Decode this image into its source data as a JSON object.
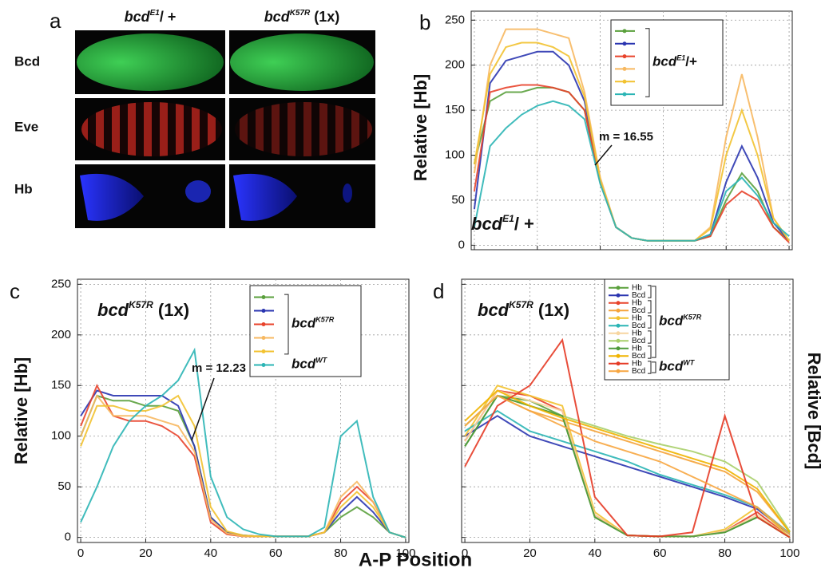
{
  "figure": {
    "x_axis_label": "A-P Position"
  },
  "panel_a": {
    "label": "a",
    "columns": [
      {
        "base": "bcd",
        "sup": "E1",
        "rest": "/ +"
      },
      {
        "base": "bcd",
        "sup": "K57R",
        "rest": " (1x)"
      }
    ],
    "rows": [
      "Bcd",
      "Eve",
      "Hb"
    ]
  },
  "chart_data": [
    {
      "type": "line",
      "panel_label": "b",
      "y_label": "Relative [Hb]",
      "inset_label": {
        "base": "bcd",
        "sup": "E1",
        "rest": "/ +"
      },
      "annotation": "m = 16.55",
      "legend_groups": [
        {
          "base": "bcd",
          "sup": "E1",
          "rest": "/+"
        }
      ],
      "x": [
        0,
        5,
        10,
        15,
        20,
        25,
        30,
        35,
        40,
        45,
        50,
        55,
        60,
        65,
        70,
        75,
        80,
        85,
        90,
        95,
        100
      ],
      "xlim": [
        -1,
        101
      ],
      "ylim": [
        -5,
        260
      ],
      "xticks": [
        0,
        20,
        40,
        60,
        80,
        100
      ],
      "xtick_labels": false,
      "yticks": [
        0,
        50,
        100,
        150,
        200,
        250
      ],
      "ytick_labels": true,
      "grid": true,
      "series": [
        {
          "color": "#5aa03c",
          "values": [
            90,
            160,
            170,
            170,
            175,
            175,
            170,
            150,
            70,
            20,
            8,
            5,
            5,
            5,
            5,
            10,
            50,
            80,
            60,
            20,
            5
          ]
        },
        {
          "color": "#2a35b0",
          "values": [
            40,
            180,
            205,
            210,
            215,
            215,
            200,
            160,
            70,
            20,
            8,
            5,
            5,
            5,
            5,
            12,
            70,
            110,
            75,
            25,
            5
          ]
        },
        {
          "color": "#e8432b",
          "values": [
            60,
            170,
            175,
            178,
            178,
            175,
            170,
            150,
            70,
            20,
            8,
            5,
            5,
            5,
            5,
            10,
            45,
            60,
            50,
            20,
            3
          ]
        },
        {
          "color": "#f7b860",
          "values": [
            80,
            200,
            240,
            240,
            240,
            235,
            230,
            170,
            75,
            20,
            8,
            5,
            5,
            5,
            5,
            20,
            120,
            190,
            120,
            30,
            5
          ]
        },
        {
          "color": "#f2c230",
          "values": [
            90,
            190,
            220,
            225,
            225,
            220,
            210,
            165,
            72,
            20,
            8,
            5,
            5,
            5,
            5,
            18,
            100,
            150,
            100,
            30,
            5
          ]
        },
        {
          "color": "#2bb5b5",
          "values": [
            20,
            110,
            130,
            145,
            155,
            160,
            155,
            140,
            68,
            20,
            8,
            5,
            5,
            5,
            5,
            12,
            60,
            75,
            55,
            25,
            10
          ]
        }
      ]
    },
    {
      "type": "line",
      "panel_label": "c",
      "y_label": "Relative [Hb]",
      "inset_label": {
        "base": "bcd",
        "sup": "K57R",
        "rest": "     (1x)"
      },
      "annotation": "m = 12.23",
      "legend_groups": [
        {
          "base": "bcd",
          "sup": "K57R"
        },
        {
          "base": "bcd",
          "sup": "WT"
        }
      ],
      "x": [
        0,
        5,
        10,
        15,
        20,
        25,
        30,
        35,
        40,
        45,
        50,
        55,
        60,
        65,
        70,
        75,
        80,
        85,
        90,
        95,
        100
      ],
      "xlim": [
        -1,
        101
      ],
      "ylim": [
        -5,
        255
      ],
      "xticks": [
        0,
        20,
        40,
        60,
        80,
        100
      ],
      "xtick_labels": true,
      "yticks": [
        0,
        50,
        100,
        150,
        200,
        250
      ],
      "ytick_labels": true,
      "grid": true,
      "series": [
        {
          "color": "#5aa03c",
          "values": [
            100,
            140,
            135,
            135,
            130,
            130,
            125,
            90,
            20,
            5,
            2,
            1,
            1,
            1,
            1,
            5,
            20,
            30,
            20,
            5,
            0
          ]
        },
        {
          "color": "#2a35b0",
          "values": [
            120,
            145,
            140,
            140,
            140,
            140,
            130,
            90,
            20,
            5,
            2,
            1,
            1,
            1,
            1,
            5,
            25,
            40,
            25,
            5,
            0
          ]
        },
        {
          "color": "#e8432b",
          "values": [
            110,
            150,
            120,
            115,
            115,
            110,
            100,
            80,
            15,
            3,
            1,
            1,
            1,
            1,
            1,
            5,
            35,
            50,
            35,
            5,
            0
          ]
        },
        {
          "color": "#f7b860",
          "values": [
            100,
            140,
            120,
            120,
            120,
            115,
            110,
            85,
            18,
            4,
            1,
            1,
            1,
            1,
            1,
            5,
            40,
            55,
            35,
            5,
            0
          ]
        },
        {
          "color": "#f2c230",
          "values": [
            90,
            130,
            130,
            125,
            125,
            130,
            140,
            110,
            30,
            6,
            2,
            1,
            1,
            1,
            1,
            5,
            30,
            45,
            30,
            5,
            0
          ]
        },
        {
          "color": "#2bb5b5",
          "values": [
            15,
            50,
            90,
            115,
            130,
            140,
            155,
            185,
            60,
            20,
            8,
            3,
            1,
            1,
            1,
            10,
            100,
            115,
            40,
            5,
            0
          ]
        }
      ]
    },
    {
      "type": "line",
      "panel_label": "d",
      "y_label": "Relative [Bcd]",
      "inset_label": {
        "base": "bcd",
        "sup": "K57R",
        "rest": " (1x)"
      },
      "legend_groups": [
        {
          "base": "bcd",
          "sup": "K57R"
        },
        {
          "base": "bcd",
          "sup": "WT"
        }
      ],
      "x": [
        0,
        10,
        20,
        30,
        40,
        50,
        60,
        70,
        80,
        90,
        100
      ],
      "xlim": [
        -1,
        101
      ],
      "ylim": [
        -5,
        255
      ],
      "xticks": [
        0,
        20,
        40,
        60,
        80,
        100
      ],
      "xtick_labels": true,
      "yticks": [
        0,
        50,
        100,
        150,
        200,
        250
      ],
      "ytick_labels": false,
      "grid": true,
      "series": [
        {
          "name": "Hb",
          "color": "#5aa03c",
          "values": [
            90,
            140,
            135,
            120,
            20,
            2,
            1,
            1,
            5,
            20,
            0
          ]
        },
        {
          "name": "Bcd",
          "color": "#2a35b0",
          "values": [
            100,
            120,
            100,
            90,
            80,
            70,
            60,
            50,
            40,
            28,
            3
          ]
        },
        {
          "name": "Hb",
          "color": "#e8432b",
          "values": [
            95,
            145,
            140,
            125,
            22,
            2,
            1,
            1,
            6,
            25,
            0
          ]
        },
        {
          "name": "Bcd",
          "color": "#f5a43a",
          "values": [
            110,
            140,
            125,
            115,
            105,
            95,
            85,
            75,
            65,
            45,
            5
          ]
        },
        {
          "name": "Hb",
          "color": "#f2c230",
          "values": [
            100,
            150,
            140,
            130,
            25,
            2,
            1,
            1,
            8,
            30,
            0
          ]
        },
        {
          "name": "Bcd",
          "color": "#2bb5b5",
          "values": [
            105,
            125,
            105,
            95,
            85,
            75,
            62,
            52,
            42,
            30,
            4
          ]
        },
        {
          "name": "Hb",
          "color": "#f7d6a0",
          "values": [
            95,
            145,
            135,
            125,
            22,
            2,
            1,
            1,
            6,
            22,
            0
          ]
        },
        {
          "name": "Bcd",
          "color": "#a8cf6a",
          "values": [
            110,
            140,
            130,
            120,
            110,
            100,
            92,
            85,
            75,
            55,
            6
          ]
        },
        {
          "name": "Hb",
          "color": "#4e9a3a",
          "values": [
            90,
            140,
            130,
            120,
            20,
            2,
            1,
            1,
            5,
            20,
            0
          ]
        },
        {
          "name": "Bcd",
          "color": "#f0b400",
          "values": [
            115,
            145,
            130,
            118,
            108,
            98,
            88,
            78,
            68,
            48,
            5
          ]
        },
        {
          "name": "Hb",
          "color": "#e53a25",
          "values": [
            70,
            130,
            150,
            195,
            40,
            2,
            1,
            5,
            120,
            20,
            0
          ]
        },
        {
          "name": "Bcd",
          "color": "#f7a640",
          "values": [
            110,
            140,
            125,
            110,
            95,
            85,
            75,
            60,
            45,
            30,
            3
          ]
        }
      ]
    }
  ]
}
